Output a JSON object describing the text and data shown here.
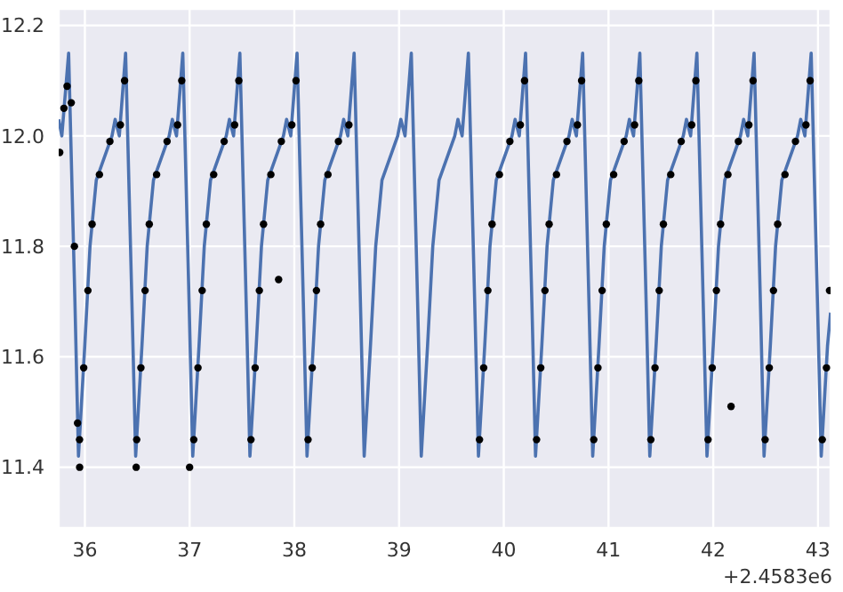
{
  "chart_data": {
    "type": "line",
    "xlim": [
      35.75,
      43.12
    ],
    "xticks": [
      36,
      37,
      38,
      39,
      40,
      41,
      42,
      43
    ],
    "ylim": [
      11.29,
      12.23
    ],
    "yticks": [
      {
        "value": 11.4,
        "label": "11.4"
      },
      {
        "value": 11.6,
        "label": "11.6"
      },
      {
        "value": 11.8,
        "label": "11.8"
      },
      {
        "value": 12.0,
        "label": "12.0"
      },
      {
        "value": 12.2,
        "label": "12.2"
      }
    ],
    "grid": true,
    "legend": false,
    "annotations": [
      "+2.4583e6"
    ],
    "series": [
      {
        "color": "#4c72b0",
        "marker": "none",
        "x": [
          35.75,
          35.78,
          35.845,
          35.905,
          35.939,
          35.969,
          35.999,
          36.049,
          36.109,
          36.259,
          36.289,
          36.329,
          36.389,
          36.449,
          36.485,
          36.515,
          36.545,
          36.595,
          36.655,
          36.805,
          36.835,
          36.875,
          36.935,
          36.995,
          37.03,
          37.06,
          37.09,
          37.14,
          37.2,
          37.35,
          37.38,
          37.42,
          37.48,
          37.54,
          37.576,
          37.606,
          37.636,
          37.686,
          37.746,
          37.896,
          37.926,
          37.966,
          38.026,
          38.086,
          38.121,
          38.151,
          38.181,
          38.231,
          38.291,
          38.441,
          38.471,
          38.511,
          38.571,
          38.631,
          38.667,
          38.697,
          38.727,
          38.777,
          38.837,
          38.987,
          39.017,
          39.057,
          39.117,
          39.177,
          39.212,
          39.242,
          39.272,
          39.322,
          39.382,
          39.532,
          39.562,
          39.602,
          39.662,
          39.722,
          39.758,
          39.788,
          39.818,
          39.868,
          39.928,
          40.078,
          40.108,
          40.148,
          40.208,
          40.268,
          40.303,
          40.333,
          40.363,
          40.413,
          40.473,
          40.623,
          40.653,
          40.693,
          40.753,
          40.813,
          40.849,
          40.879,
          40.909,
          40.959,
          41.019,
          41.169,
          41.199,
          41.239,
          41.299,
          41.359,
          41.394,
          41.424,
          41.454,
          41.504,
          41.564,
          41.714,
          41.744,
          41.784,
          41.844,
          41.904,
          41.94,
          41.97,
          42.0,
          42.05,
          42.11,
          42.26,
          42.29,
          42.33,
          42.39,
          42.45,
          42.485,
          42.515,
          42.545,
          42.595,
          42.655,
          42.805,
          42.835,
          42.875,
          42.935,
          42.995,
          43.031,
          43.061,
          43.091,
          43.12
        ],
        "values": [
          12.03,
          12.0,
          12.15,
          11.7,
          11.42,
          11.52,
          11.62,
          11.8,
          11.92,
          12.0,
          12.03,
          12.0,
          12.15,
          11.7,
          11.42,
          11.52,
          11.62,
          11.8,
          11.92,
          12.0,
          12.03,
          12.0,
          12.15,
          11.7,
          11.42,
          11.52,
          11.62,
          11.8,
          11.92,
          12.0,
          12.03,
          12.0,
          12.15,
          11.7,
          11.42,
          11.52,
          11.62,
          11.8,
          11.92,
          12.0,
          12.03,
          12.0,
          12.15,
          11.7,
          11.42,
          11.52,
          11.62,
          11.8,
          11.92,
          12.0,
          12.03,
          12.0,
          12.15,
          11.7,
          11.42,
          11.52,
          11.62,
          11.8,
          11.92,
          12.0,
          12.03,
          12.0,
          12.15,
          11.7,
          11.42,
          11.52,
          11.62,
          11.8,
          11.92,
          12.0,
          12.03,
          12.0,
          12.15,
          11.7,
          11.42,
          11.52,
          11.62,
          11.8,
          11.92,
          12.0,
          12.03,
          12.0,
          12.15,
          11.7,
          11.42,
          11.52,
          11.62,
          11.8,
          11.92,
          12.0,
          12.03,
          12.0,
          12.15,
          11.7,
          11.42,
          11.52,
          11.62,
          11.8,
          11.92,
          12.0,
          12.03,
          12.0,
          12.15,
          11.7,
          11.42,
          11.52,
          11.62,
          11.8,
          11.92,
          12.0,
          12.03,
          12.0,
          12.15,
          11.7,
          11.42,
          11.52,
          11.62,
          11.8,
          11.92,
          12.0,
          12.03,
          12.0,
          12.15,
          11.7,
          11.42,
          11.52,
          11.62,
          11.8,
          11.92,
          12.0,
          12.03,
          12.0,
          12.15,
          11.7,
          11.42,
          11.52,
          11.62,
          11.68
        ]
      },
      {
        "type": "scatter",
        "color": "#000000",
        "marker": "circle",
        "x": [
          35.76,
          35.8,
          35.83,
          35.87,
          35.9,
          35.93,
          35.95,
          35.949,
          35.989,
          36.029,
          36.069,
          36.139,
          36.239,
          36.339,
          36.379,
          36.495,
          36.535,
          36.575,
          36.615,
          36.685,
          36.785,
          36.885,
          36.925,
          37.04,
          37.08,
          37.12,
          37.16,
          37.23,
          37.33,
          37.43,
          37.47,
          37.586,
          37.626,
          37.666,
          37.706,
          37.776,
          37.876,
          37.976,
          38.016,
          38.131,
          38.171,
          38.211,
          38.251,
          38.321,
          38.421,
          38.521,
          39.768,
          39.808,
          39.848,
          39.888,
          39.958,
          40.058,
          40.158,
          40.198,
          40.313,
          40.353,
          40.393,
          40.433,
          40.503,
          40.603,
          40.703,
          40.743,
          40.859,
          40.899,
          40.939,
          40.979,
          41.049,
          41.149,
          41.249,
          41.289,
          41.404,
          41.444,
          41.484,
          41.524,
          41.594,
          41.694,
          41.794,
          41.834,
          41.95,
          41.99,
          42.03,
          42.07,
          42.14,
          42.24,
          42.34,
          42.38,
          42.495,
          42.535,
          42.575,
          42.615,
          42.685,
          42.785,
          42.885,
          42.925,
          43.041,
          43.081,
          43.11,
          36.49,
          37.0,
          37.85,
          42.17
        ],
        "values": [
          11.97,
          12.05,
          12.09,
          12.06,
          11.8,
          11.48,
          11.4,
          11.45,
          11.58,
          11.72,
          11.84,
          11.93,
          11.99,
          12.02,
          12.1,
          11.45,
          11.58,
          11.72,
          11.84,
          11.93,
          11.99,
          12.02,
          12.1,
          11.45,
          11.58,
          11.72,
          11.84,
          11.93,
          11.99,
          12.02,
          12.1,
          11.45,
          11.58,
          11.72,
          11.84,
          11.93,
          11.99,
          12.02,
          12.1,
          11.45,
          11.58,
          11.72,
          11.84,
          11.93,
          11.99,
          12.02,
          11.45,
          11.58,
          11.72,
          11.84,
          11.93,
          11.99,
          12.02,
          12.1,
          11.45,
          11.58,
          11.72,
          11.84,
          11.93,
          11.99,
          12.02,
          12.1,
          11.45,
          11.58,
          11.72,
          11.84,
          11.93,
          11.99,
          12.02,
          12.1,
          11.45,
          11.58,
          11.72,
          11.84,
          11.93,
          11.99,
          12.02,
          12.1,
          11.45,
          11.58,
          11.72,
          11.84,
          11.93,
          11.99,
          12.02,
          12.1,
          11.45,
          11.58,
          11.72,
          11.84,
          11.93,
          11.99,
          12.02,
          12.1,
          11.45,
          11.58,
          11.72,
          11.4,
          11.4,
          11.74,
          11.51
        ]
      }
    ]
  }
}
